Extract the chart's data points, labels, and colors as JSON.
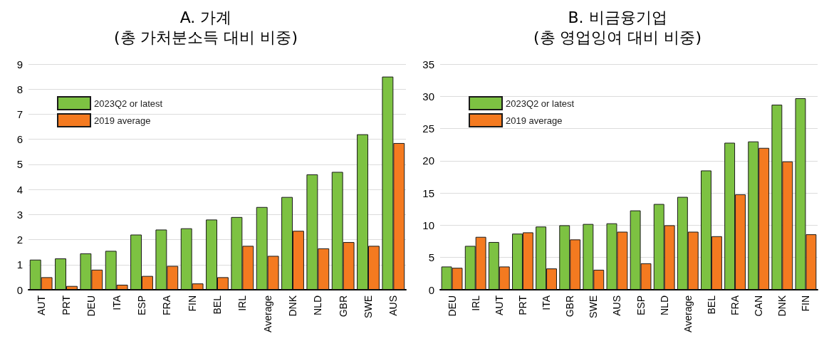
{
  "chart_data": [
    {
      "type": "bar",
      "title": "A. 가계\n(총 가처분소득 대비 비중)",
      "categories": [
        "AUT",
        "PRT",
        "DEU",
        "ITA",
        "ESP",
        "FRA",
        "FIN",
        "BEL",
        "IRL",
        "Average",
        "DNK",
        "NLD",
        "GBR",
        "SWE",
        "AUS"
      ],
      "series": [
        {
          "name": "2023Q2 or latest",
          "color": "#7dc242",
          "values": [
            1.2,
            1.25,
            1.45,
            1.55,
            2.2,
            2.4,
            2.45,
            2.8,
            2.9,
            3.3,
            3.7,
            4.6,
            4.7,
            6.2,
            8.5
          ]
        },
        {
          "name": "2019 average",
          "color": "#f47a20",
          "values": [
            0.5,
            0.15,
            0.8,
            0.2,
            0.55,
            0.95,
            0.25,
            0.5,
            1.75,
            1.35,
            2.35,
            1.65,
            1.9,
            1.75,
            5.85
          ]
        }
      ],
      "ylim": [
        0,
        9
      ],
      "yticks": [
        0,
        1,
        2,
        3,
        4,
        5,
        6,
        7,
        8,
        9
      ],
      "grid": "y",
      "legend": "top left"
    },
    {
      "type": "bar",
      "title": "B. 비금융기업\n(총 영업잉여 대비 비중)",
      "categories": [
        "DEU",
        "IRL",
        "AUT",
        "PRT",
        "ITA",
        "GBR",
        "SWE",
        "AUS",
        "ESP",
        "NLD",
        "Average",
        "BEL",
        "FRA",
        "CAN",
        "DNK",
        "FIN"
      ],
      "series": [
        {
          "name": "2023Q2 or latest",
          "color": "#7dc242",
          "values": [
            3.6,
            6.8,
            7.4,
            8.7,
            9.8,
            10.0,
            10.2,
            10.3,
            12.3,
            13.3,
            14.4,
            18.5,
            22.8,
            23.0,
            28.7,
            29.7
          ]
        },
        {
          "name": "2019 average",
          "color": "#f47a20",
          "values": [
            3.4,
            8.2,
            3.6,
            8.9,
            3.3,
            7.8,
            3.1,
            9.0,
            4.1,
            10.0,
            9.0,
            8.3,
            14.8,
            22.0,
            19.9,
            8.6
          ]
        }
      ],
      "ylim": [
        0,
        35
      ],
      "yticks": [
        0,
        5,
        10,
        15,
        20,
        25,
        30,
        35
      ],
      "grid": "y",
      "legend": "top left"
    }
  ]
}
